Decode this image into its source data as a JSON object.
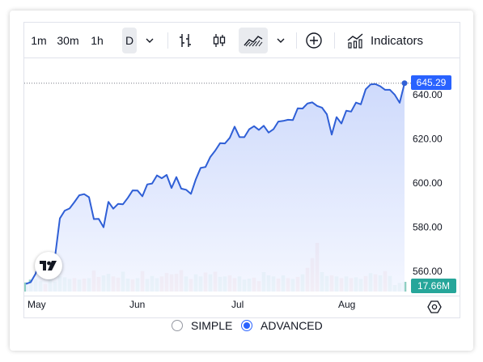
{
  "toolbar": {
    "intervals": [
      "1m",
      "30m",
      "1h",
      "D"
    ],
    "selected_interval": "D",
    "indicators_label": "Indicators"
  },
  "chart_data": {
    "type": "area",
    "x_ticks": [
      "May",
      "Jun",
      "Jul",
      "Aug"
    ],
    "y_ticks": [
      "640.00",
      "620.00",
      "600.00",
      "580.00",
      "560.00"
    ],
    "ylim": [
      549,
      654
    ],
    "last_price_label": "645.29",
    "last_volume_label": "17.66M",
    "grid": false,
    "price_series": [
      {
        "t": 0,
        "v": 554.3
      },
      {
        "t": 1,
        "v": 555.1
      },
      {
        "t": 2,
        "v": 558.9
      },
      {
        "t": 3,
        "v": 566.6
      },
      {
        "t": 4,
        "v": 562.0
      },
      {
        "t": 5,
        "v": 565.7
      },
      {
        "t": 6,
        "v": 566.6
      },
      {
        "t": 7,
        "v": 584.0
      },
      {
        "t": 8,
        "v": 587.5
      },
      {
        "t": 9,
        "v": 588.5
      },
      {
        "t": 10,
        "v": 591.4
      },
      {
        "t": 11,
        "v": 594.5
      },
      {
        "t": 12,
        "v": 595.0
      },
      {
        "t": 13,
        "v": 593.6
      },
      {
        "t": 14,
        "v": 583.7
      },
      {
        "t": 15,
        "v": 583.8
      },
      {
        "t": 16,
        "v": 580.0
      },
      {
        "t": 17,
        "v": 591.5
      },
      {
        "t": 18,
        "v": 588.4
      },
      {
        "t": 19,
        "v": 590.6
      },
      {
        "t": 20,
        "v": 590.4
      },
      {
        "t": 21,
        "v": 593.3
      },
      {
        "t": 22,
        "v": 596.7
      },
      {
        "t": 23,
        "v": 596.6
      },
      {
        "t": 24,
        "v": 594.0
      },
      {
        "t": 25,
        "v": 599.4
      },
      {
        "t": 26,
        "v": 599.8
      },
      {
        "t": 27,
        "v": 603.5
      },
      {
        "t": 28,
        "v": 602.2
      },
      {
        "t": 29,
        "v": 603.7
      },
      {
        "t": 30,
        "v": 597.8
      },
      {
        "t": 31,
        "v": 602.7
      },
      {
        "t": 32,
        "v": 597.5
      },
      {
        "t": 33,
        "v": 597.0
      },
      {
        "t": 34,
        "v": 595.1
      },
      {
        "t": 35,
        "v": 601.7
      },
      {
        "t": 36,
        "v": 606.9
      },
      {
        "t": 37,
        "v": 607.3
      },
      {
        "t": 38,
        "v": 611.9
      },
      {
        "t": 39,
        "v": 614.7
      },
      {
        "t": 40,
        "v": 618.1
      },
      {
        "t": 41,
        "v": 618.0
      },
      {
        "t": 42,
        "v": 620.5
      },
      {
        "t": 43,
        "v": 625.6
      },
      {
        "t": 44,
        "v": 620.9
      },
      {
        "t": 45,
        "v": 620.8
      },
      {
        "t": 46,
        "v": 624.4
      },
      {
        "t": 47,
        "v": 625.8
      },
      {
        "t": 48,
        "v": 624.1
      },
      {
        "t": 49,
        "v": 626.0
      },
      {
        "t": 50,
        "v": 622.9
      },
      {
        "t": 51,
        "v": 624.4
      },
      {
        "t": 52,
        "v": 627.9
      },
      {
        "t": 53,
        "v": 628.2
      },
      {
        "t": 54,
        "v": 628.7
      },
      {
        "t": 55,
        "v": 628.6
      },
      {
        "t": 56,
        "v": 633.9
      },
      {
        "t": 57,
        "v": 633.8
      },
      {
        "t": 58,
        "v": 636.1
      },
      {
        "t": 59,
        "v": 636.6
      },
      {
        "t": 60,
        "v": 635.0
      },
      {
        "t": 61,
        "v": 634.2
      },
      {
        "t": 62,
        "v": 631.2
      },
      {
        "t": 63,
        "v": 622.0
      },
      {
        "t": 64,
        "v": 629.9
      },
      {
        "t": 65,
        "v": 627.0
      },
      {
        "t": 66,
        "v": 632.8
      },
      {
        "t": 67,
        "v": 632.4
      },
      {
        "t": 68,
        "v": 636.5
      },
      {
        "t": 69,
        "v": 635.7
      },
      {
        "t": 70,
        "v": 642.5
      },
      {
        "t": 71,
        "v": 644.7
      },
      {
        "t": 72,
        "v": 644.9
      },
      {
        "t": 73,
        "v": 643.9
      },
      {
        "t": 74,
        "v": 642.3
      },
      {
        "t": 75,
        "v": 642.3
      },
      {
        "t": 76,
        "v": 640.0
      },
      {
        "t": 77,
        "v": 636.4
      },
      {
        "t": 78,
        "v": 645.3
      }
    ],
    "volume_series": [
      {
        "v": 0.42,
        "up": true
      },
      {
        "v": 0.55,
        "up": true
      },
      {
        "v": 0.58,
        "up": true
      },
      {
        "v": 0.48,
        "up": true
      },
      {
        "v": 0.35,
        "up": false
      },
      {
        "v": 0.6,
        "up": true
      },
      {
        "v": 0.46,
        "up": true
      },
      {
        "v": 0.7,
        "up": true
      },
      {
        "v": 0.66,
        "up": true
      },
      {
        "v": 0.58,
        "up": true
      },
      {
        "v": 0.62,
        "up": false
      },
      {
        "v": 0.55,
        "up": true
      },
      {
        "v": 0.6,
        "up": false
      },
      {
        "v": 0.62,
        "up": true
      },
      {
        "v": 0.98,
        "up": false
      },
      {
        "v": 0.68,
        "up": false
      },
      {
        "v": 0.75,
        "up": true
      },
      {
        "v": 0.82,
        "up": true
      },
      {
        "v": 0.7,
        "up": false
      },
      {
        "v": 0.64,
        "up": false
      },
      {
        "v": 0.92,
        "up": true
      },
      {
        "v": 0.6,
        "up": true
      },
      {
        "v": 0.56,
        "up": false
      },
      {
        "v": 0.62,
        "up": true
      },
      {
        "v": 0.95,
        "up": false
      },
      {
        "v": 0.58,
        "up": true
      },
      {
        "v": 0.72,
        "up": true
      },
      {
        "v": 0.62,
        "up": true
      },
      {
        "v": 0.7,
        "up": false
      },
      {
        "v": 0.86,
        "up": false
      },
      {
        "v": 0.8,
        "up": false
      },
      {
        "v": 0.82,
        "up": false
      },
      {
        "v": 0.99,
        "up": false
      },
      {
        "v": 0.7,
        "up": true
      },
      {
        "v": 0.58,
        "up": false
      },
      {
        "v": 0.8,
        "up": true
      },
      {
        "v": 0.7,
        "up": true
      },
      {
        "v": 0.88,
        "up": false
      },
      {
        "v": 0.8,
        "up": true
      },
      {
        "v": 0.92,
        "up": false
      },
      {
        "v": 0.68,
        "up": true
      },
      {
        "v": 0.7,
        "up": true
      },
      {
        "v": 0.75,
        "up": false
      },
      {
        "v": 0.62,
        "up": false
      },
      {
        "v": 0.7,
        "up": true
      },
      {
        "v": 0.55,
        "up": true
      },
      {
        "v": 0.6,
        "up": true
      },
      {
        "v": 0.64,
        "up": false
      },
      {
        "v": 0.48,
        "up": false
      },
      {
        "v": 0.9,
        "up": true
      },
      {
        "v": 0.75,
        "up": true
      },
      {
        "v": 0.7,
        "up": true
      },
      {
        "v": 0.6,
        "up": false
      },
      {
        "v": 0.75,
        "up": true
      },
      {
        "v": 0.62,
        "up": false
      },
      {
        "v": 0.58,
        "up": true
      },
      {
        "v": 0.68,
        "up": false
      },
      {
        "v": 0.8,
        "up": true
      },
      {
        "v": 1.1,
        "up": false
      },
      {
        "v": 1.55,
        "up": false
      },
      {
        "v": 2.25,
        "up": false
      },
      {
        "v": 0.9,
        "up": true
      },
      {
        "v": 0.72,
        "up": true
      },
      {
        "v": 0.75,
        "up": false
      },
      {
        "v": 0.7,
        "up": true
      },
      {
        "v": 0.62,
        "up": false
      },
      {
        "v": 0.7,
        "up": true
      },
      {
        "v": 0.62,
        "up": false
      },
      {
        "v": 0.66,
        "up": true
      },
      {
        "v": 0.58,
        "up": true
      },
      {
        "v": 0.72,
        "up": false
      },
      {
        "v": 0.85,
        "up": true
      },
      {
        "v": 0.8,
        "up": false
      },
      {
        "v": 0.75,
        "up": true
      },
      {
        "v": 0.95,
        "up": false
      },
      {
        "v": 0.72,
        "up": true
      },
      {
        "v": 0.3,
        "up": true
      },
      {
        "v": 0.4,
        "up": true
      },
      {
        "v": 0.45,
        "up": true
      }
    ],
    "colors": {
      "line": "#2f5fd6",
      "area_top": "#c9d6fb",
      "area_bottom": "#f3f6ff",
      "volume_up": "#8fcfc2",
      "volume_down": "#e9a2a4",
      "price_tag": "#2962ff",
      "volume_tag": "#26a69a"
    }
  },
  "modes": {
    "simple_label": "SIMPLE",
    "advanced_label": "ADVANCED",
    "selected": "ADVANCED"
  }
}
